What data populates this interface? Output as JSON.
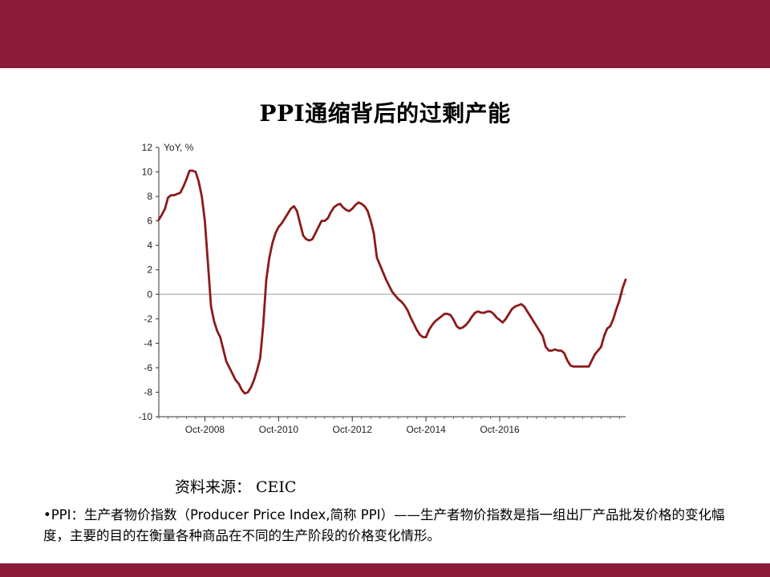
{
  "slide": {
    "title": "PPI通缩背后的过剩产能",
    "source_label": "资料来源：",
    "source_value": "CEIC",
    "note_bullet": "•",
    "note_text": "PPI：生产者物价指数（Producer  Price Index,简称  PPI）——生产者物价指数是指一组出厂产品批发价格的变化幅度，主要的目的在衡量各种商品在不同的生产阶段的价格变化情形。",
    "colors": {
      "brand_bar": "#8b1a3b",
      "series_line": "#8b1a1a",
      "zero_line": "#b0b0b0"
    }
  },
  "chart_data": {
    "type": "line",
    "title": "",
    "ylabel": "YoY, %",
    "xlabel": "",
    "ylim": [
      -10,
      12
    ],
    "yticks": [
      12,
      10,
      8,
      6,
      4,
      2,
      0,
      -2,
      -4,
      -6,
      -8,
      -10
    ],
    "xticks": [
      "Oct-2008",
      "Oct-2010",
      "Oct-2012",
      "Oct-2014",
      "Oct-2016"
    ],
    "grid": false,
    "legend": "none",
    "series": [
      {
        "values": [
          [
            "2007-07",
            6.1
          ],
          [
            "2007-08",
            6.5
          ],
          [
            "2007-09",
            7.0
          ],
          [
            "2007-10",
            7.9
          ],
          [
            "2007-11",
            8.1
          ],
          [
            "2007-12",
            8.1
          ],
          [
            "2008-01",
            8.2
          ],
          [
            "2008-02",
            8.3
          ],
          [
            "2008-03",
            8.8
          ],
          [
            "2008-04",
            9.4
          ],
          [
            "2008-05",
            10.1
          ],
          [
            "2008-06",
            10.1
          ],
          [
            "2008-07",
            10.0
          ],
          [
            "2008-08",
            9.2
          ],
          [
            "2008-09",
            8.0
          ],
          [
            "2008-10",
            6.0
          ],
          [
            "2008-11",
            2.5
          ],
          [
            "2008-12",
            -1.0
          ],
          [
            "2009-01",
            -2.2
          ],
          [
            "2009-02",
            -3.0
          ],
          [
            "2009-03",
            -3.5
          ],
          [
            "2009-04",
            -4.5
          ],
          [
            "2009-05",
            -5.5
          ],
          [
            "2009-06",
            -6.0
          ],
          [
            "2009-07",
            -6.5
          ],
          [
            "2009-08",
            -7.0
          ],
          [
            "2009-09",
            -7.3
          ],
          [
            "2009-10",
            -7.8
          ],
          [
            "2009-11",
            -8.1
          ],
          [
            "2009-12",
            -8.0
          ],
          [
            "2010-01",
            -7.6
          ],
          [
            "2010-02",
            -7.0
          ],
          [
            "2010-03",
            -6.2
          ],
          [
            "2010-04",
            -5.2
          ],
          [
            "2010-05",
            -2.5
          ],
          [
            "2010-06",
            1.2
          ],
          [
            "2010-07",
            3.0
          ],
          [
            "2010-08",
            4.2
          ],
          [
            "2010-09",
            5.0
          ],
          [
            "2010-10",
            5.5
          ],
          [
            "2010-11",
            5.8
          ],
          [
            "2010-12",
            6.2
          ],
          [
            "2011-01",
            6.6
          ],
          [
            "2011-02",
            7.0
          ],
          [
            "2011-03",
            7.2
          ],
          [
            "2011-04",
            6.8
          ],
          [
            "2011-05",
            5.8
          ],
          [
            "2011-06",
            4.8
          ],
          [
            "2011-07",
            4.5
          ],
          [
            "2011-08",
            4.4
          ],
          [
            "2011-09",
            4.5
          ],
          [
            "2011-10",
            5.0
          ],
          [
            "2011-11",
            5.5
          ],
          [
            "2011-12",
            6.0
          ],
          [
            "2012-01",
            6.0
          ],
          [
            "2012-02",
            6.2
          ],
          [
            "2012-03",
            6.7
          ],
          [
            "2012-04",
            7.1
          ],
          [
            "2012-05",
            7.3
          ],
          [
            "2012-06",
            7.4
          ],
          [
            "2012-07",
            7.1
          ],
          [
            "2012-08",
            6.9
          ],
          [
            "2012-09",
            6.8
          ],
          [
            "2012-10",
            7.0
          ],
          [
            "2012-11",
            7.3
          ],
          [
            "2012-12",
            7.5
          ],
          [
            "2013-01",
            7.4
          ],
          [
            "2013-02",
            7.2
          ],
          [
            "2013-03",
            6.8
          ],
          [
            "2013-04",
            6.0
          ],
          [
            "2013-05",
            5.0
          ],
          [
            "2013-06",
            3.0
          ],
          [
            "2013-07",
            2.4
          ],
          [
            "2013-08",
            1.8
          ],
          [
            "2013-09",
            1.2
          ],
          [
            "2013-10",
            0.7
          ],
          [
            "2013-11",
            0.2
          ],
          [
            "2013-12",
            -0.1
          ],
          [
            "2014-01",
            -0.4
          ],
          [
            "2014-02",
            -0.6
          ],
          [
            "2014-03",
            -0.9
          ],
          [
            "2014-04",
            -1.3
          ],
          [
            "2014-05",
            -1.9
          ],
          [
            "2014-06",
            -2.4
          ],
          [
            "2014-07",
            -2.9
          ],
          [
            "2014-08",
            -3.3
          ],
          [
            "2014-09",
            -3.5
          ],
          [
            "2014-10",
            -3.5
          ],
          [
            "2014-11",
            -2.9
          ],
          [
            "2014-12",
            -2.5
          ],
          [
            "2015-01",
            -2.2
          ],
          [
            "2015-02",
            -2.0
          ],
          [
            "2015-03",
            -1.8
          ],
          [
            "2015-04",
            -1.6
          ],
          [
            "2015-05",
            -1.6
          ],
          [
            "2015-06",
            -1.7
          ],
          [
            "2015-07",
            -2.1
          ],
          [
            "2015-08",
            -2.6
          ],
          [
            "2015-09",
            -2.8
          ],
          [
            "2015-10",
            -2.7
          ],
          [
            "2015-11",
            -2.5
          ],
          [
            "2015-12",
            -2.2
          ],
          [
            "2016-01",
            -1.8
          ],
          [
            "2016-02",
            -1.5
          ],
          [
            "2016-03",
            -1.4
          ],
          [
            "2016-04",
            -1.5
          ],
          [
            "2016-05",
            -1.5
          ],
          [
            "2016-06",
            -1.4
          ],
          [
            "2016-07",
            -1.4
          ],
          [
            "2016-08",
            -1.6
          ],
          [
            "2016-09",
            -1.9
          ],
          [
            "2016-10",
            -2.1
          ],
          [
            "2016-11",
            -2.3
          ],
          [
            "2016-12",
            -2.0
          ],
          [
            "2017-01",
            -1.6
          ],
          [
            "2017-02",
            -1.2
          ],
          [
            "2017-03",
            -1.0
          ],
          [
            "2017-04",
            -0.9
          ],
          [
            "2017-05",
            -0.8
          ],
          [
            "2017-06",
            -1.0
          ],
          [
            "2017-07",
            -1.4
          ],
          [
            "2017-08",
            -1.8
          ],
          [
            "2017-09",
            -2.2
          ],
          [
            "2017-10",
            -2.6
          ],
          [
            "2017-11",
            -3.0
          ],
          [
            "2017-12",
            -3.4
          ],
          [
            "2018-01",
            -4.3
          ],
          [
            "2018-02",
            -4.6
          ],
          [
            "2018-03",
            -4.6
          ],
          [
            "2018-04",
            -4.5
          ],
          [
            "2018-05",
            -4.6
          ],
          [
            "2018-06",
            -4.6
          ],
          [
            "2018-07",
            -4.8
          ],
          [
            "2018-08",
            -5.4
          ],
          [
            "2018-09",
            -5.8
          ],
          [
            "2018-10",
            -5.9
          ],
          [
            "2018-11",
            -5.9
          ],
          [
            "2018-12",
            -5.9
          ],
          [
            "2019-01",
            -5.9
          ],
          [
            "2019-02",
            -5.9
          ],
          [
            "2019-03",
            -5.9
          ],
          [
            "2019-04",
            -5.4
          ],
          [
            "2019-05",
            -4.9
          ],
          [
            "2019-06",
            -4.6
          ],
          [
            "2019-07",
            -4.3
          ],
          [
            "2019-08",
            -3.4
          ],
          [
            "2019-09",
            -2.8
          ],
          [
            "2019-10",
            -2.6
          ],
          [
            "2019-11",
            -2.0
          ],
          [
            "2019-12",
            -1.2
          ],
          [
            "2020-01",
            -0.5
          ],
          [
            "2020-02",
            0.5
          ],
          [
            "2020-03",
            1.2
          ]
        ]
      }
    ]
  }
}
